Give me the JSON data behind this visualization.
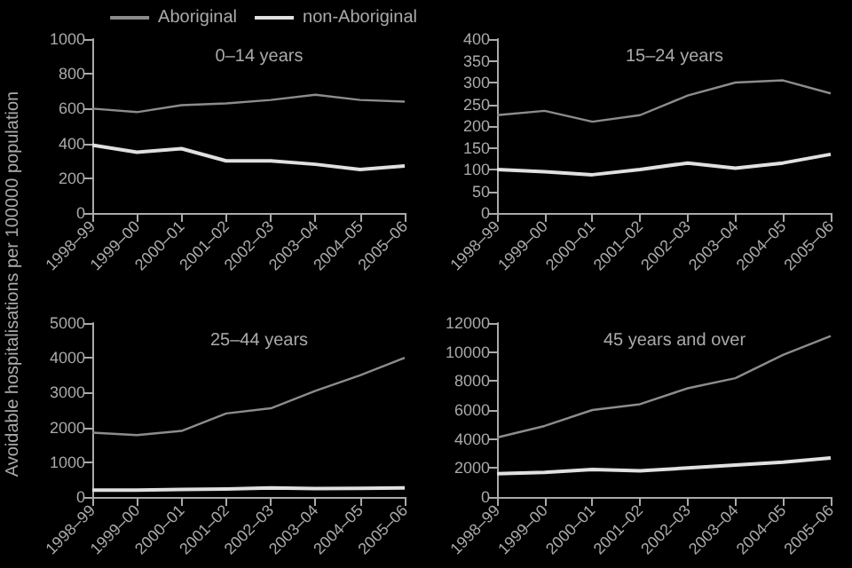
{
  "chart_data": [
    {
      "type": "line",
      "title": "0–14 years",
      "ylabel": "Avoidable hospitalisations per 100000 population",
      "categories": [
        "1998–99",
        "1999–00",
        "2000–01",
        "2001–02",
        "2002–03",
        "2003–04",
        "2004–05",
        "2005–06"
      ],
      "ylim": [
        0,
        1000
      ],
      "yticks": [
        0,
        200,
        400,
        600,
        800,
        1000
      ],
      "grid": false,
      "legend": "top right",
      "marker": "none",
      "series": [
        {
          "name": "Aboriginal",
          "color": "#8c8c8c",
          "values": [
            600,
            580,
            620,
            630,
            650,
            680,
            650,
            640
          ]
        },
        {
          "name": "non-Aboriginal",
          "color": "#e0e0e0",
          "values": [
            390,
            350,
            370,
            300,
            300,
            280,
            250,
            270
          ]
        }
      ]
    },
    {
      "type": "line",
      "title": "15–24 years",
      "categories": [
        "1998–99",
        "1999–00",
        "2000–01",
        "2001–02",
        "2002–03",
        "2003–04",
        "2004–05",
        "2005–06"
      ],
      "ylim": [
        0,
        400
      ],
      "yticks": [
        0,
        50,
        100,
        150,
        200,
        250,
        300,
        350,
        400
      ],
      "grid": false,
      "marker": "none",
      "series": [
        {
          "color": "#8c8c8c",
          "values": [
            225,
            235,
            210,
            225,
            270,
            300,
            305,
            275
          ]
        },
        {
          "color": "#e0e0e0",
          "values": [
            100,
            95,
            88,
            100,
            115,
            103,
            115,
            135
          ]
        }
      ]
    },
    {
      "type": "line",
      "title": "25–44 years",
      "categories": [
        "1998–99",
        "1999–00",
        "2000–01",
        "2001–02",
        "2002–03",
        "2003–04",
        "2004–05",
        "2005–06"
      ],
      "ylim": [
        0,
        5000
      ],
      "yticks": [
        0,
        1000,
        2000,
        3000,
        4000,
        5000
      ],
      "grid": false,
      "marker": "none",
      "series": [
        {
          "color": "#8c8c8c",
          "values": [
            1850,
            1780,
            1900,
            2400,
            2550,
            3050,
            3500,
            4000
          ]
        },
        {
          "color": "#e0e0e0",
          "values": [
            200,
            200,
            220,
            230,
            260,
            240,
            250,
            260
          ]
        }
      ]
    },
    {
      "type": "line",
      "title": "45 years and over",
      "categories": [
        "1998–99",
        "1999–00",
        "2000–01",
        "2001–02",
        "2002–03",
        "2003–04",
        "2004–05",
        "2005–06"
      ],
      "ylim": [
        0,
        12000
      ],
      "yticks": [
        0,
        2000,
        4000,
        6000,
        8000,
        10000,
        12000
      ],
      "grid": false,
      "marker": "none",
      "series": [
        {
          "color": "#8c8c8c",
          "values": [
            4100,
            4900,
            6000,
            6400,
            7500,
            8200,
            9800,
            11100
          ]
        },
        {
          "color": "#e0e0e0",
          "values": [
            1600,
            1700,
            1900,
            1800,
            2000,
            2200,
            2400,
            2700
          ]
        }
      ]
    }
  ]
}
